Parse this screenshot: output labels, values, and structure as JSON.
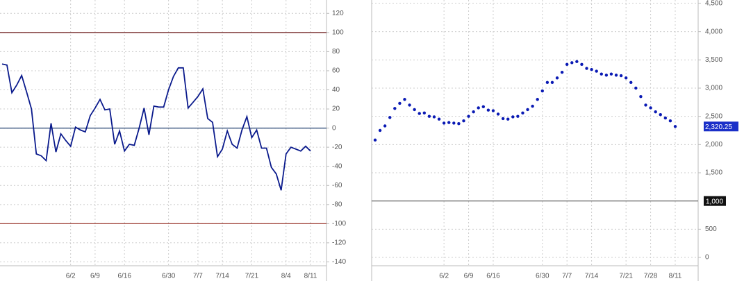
{
  "chart_data": [
    {
      "type": "line",
      "color": "#0a1a8c",
      "grid": true,
      "categories": [
        null,
        null,
        null,
        null,
        null,
        null,
        null,
        null,
        null,
        null,
        null,
        null,
        null,
        null,
        "6/2",
        null,
        null,
        null,
        null,
        "6/9",
        null,
        null,
        null,
        null,
        null,
        "6/16",
        null,
        null,
        null,
        null,
        null,
        null,
        null,
        null,
        "6/30",
        null,
        null,
        null,
        null,
        null,
        "7/7",
        null,
        null,
        null,
        null,
        "7/14",
        null,
        null,
        null,
        null,
        null,
        "7/21",
        null,
        null,
        null,
        null,
        null,
        null,
        "8/4",
        null,
        null,
        null,
        null,
        "8/11"
      ],
      "values": [
        67,
        66,
        37,
        45,
        55,
        38,
        20,
        -27,
        -29,
        -34,
        5,
        -25,
        -6,
        -13,
        -19,
        1,
        -2,
        -4,
        13,
        21,
        30,
        19,
        20,
        -17,
        -3,
        -24,
        -17,
        -18,
        0,
        21,
        -7,
        23,
        22,
        22,
        40,
        54,
        63,
        63,
        21,
        27,
        33,
        41,
        10,
        6,
        -30,
        -22,
        -3,
        -17,
        -21,
        -2,
        12,
        -10,
        -2,
        -21,
        -21,
        -41,
        -48,
        -65,
        -27,
        -20,
        -22,
        -24,
        -19,
        -24
      ],
      "ylim": [
        -144,
        134
      ],
      "yticks": [
        -140,
        -120,
        -100,
        -80,
        -60,
        -40,
        -20,
        0,
        20,
        40,
        60,
        80,
        100,
        120
      ],
      "reference_lines": [
        {
          "value": 100,
          "color": "#6b1a1a"
        },
        {
          "value": 0,
          "color": "#1a3a6b"
        },
        {
          "value": -100,
          "color": "#a0433a"
        }
      ]
    },
    {
      "type": "scatter",
      "color": "#0a1ab4",
      "grid": true,
      "categories": [
        null,
        null,
        null,
        null,
        null,
        null,
        null,
        null,
        null,
        null,
        null,
        null,
        null,
        null,
        "6/2",
        null,
        null,
        null,
        null,
        "6/9",
        null,
        null,
        null,
        null,
        "6/16",
        null,
        null,
        null,
        null,
        null,
        null,
        null,
        null,
        null,
        "6/30",
        null,
        null,
        null,
        null,
        "7/7",
        null,
        null,
        null,
        null,
        "7/14",
        null,
        null,
        null,
        null,
        null,
        null,
        "7/21",
        null,
        null,
        null,
        null,
        "7/28",
        null,
        null,
        null,
        null,
        "8/11"
      ],
      "values": [
        2080,
        2250,
        2330,
        2480,
        2640,
        2730,
        2800,
        2700,
        2620,
        2550,
        2560,
        2500,
        2490,
        2450,
        2380,
        2390,
        2380,
        2370,
        2420,
        2500,
        2580,
        2650,
        2670,
        2610,
        2600,
        2540,
        2460,
        2450,
        2490,
        2500,
        2560,
        2620,
        2680,
        2800,
        2950,
        3100,
        3100,
        3180,
        3280,
        3420,
        3450,
        3470,
        3420,
        3350,
        3330,
        3300,
        3250,
        3230,
        3250,
        3230,
        3220,
        3180,
        3100,
        3000,
        2850,
        2700,
        2650,
        2580,
        2530,
        2470,
        2420,
        2320.25
      ],
      "value_labels": [
        null,
        null,
        null,
        null,
        null,
        null,
        null,
        null,
        null,
        null,
        null,
        null,
        null,
        null,
        null,
        null,
        null,
        null,
        null,
        null,
        null,
        null,
        null,
        null,
        null,
        null,
        null,
        null,
        null,
        null,
        null,
        null,
        null,
        null,
        null,
        null,
        null,
        null,
        null,
        null,
        null,
        null,
        null,
        null,
        null,
        null,
        null,
        null,
        null,
        null,
        null,
        null,
        null,
        null,
        null,
        null,
        null,
        null,
        null,
        null,
        null,
        "2,320.25"
      ],
      "ylim": [
        -147,
        4561
      ],
      "yticks": [
        0,
        500,
        {
          "value": 1500,
          "label": "1,500"
        },
        {
          "value": 2000,
          "label": "2,000"
        },
        {
          "value": 2500,
          "label": "2,500"
        },
        {
          "value": 3000,
          "label": "3,000"
        },
        {
          "value": 3500,
          "label": "3,500"
        },
        {
          "value": 4000,
          "label": "4,000"
        },
        {
          "value": 4500,
          "label": "4,500"
        }
      ],
      "reference_lines": [
        {
          "value": 1000,
          "label": "1,000",
          "color": "#555555"
        }
      ]
    }
  ]
}
